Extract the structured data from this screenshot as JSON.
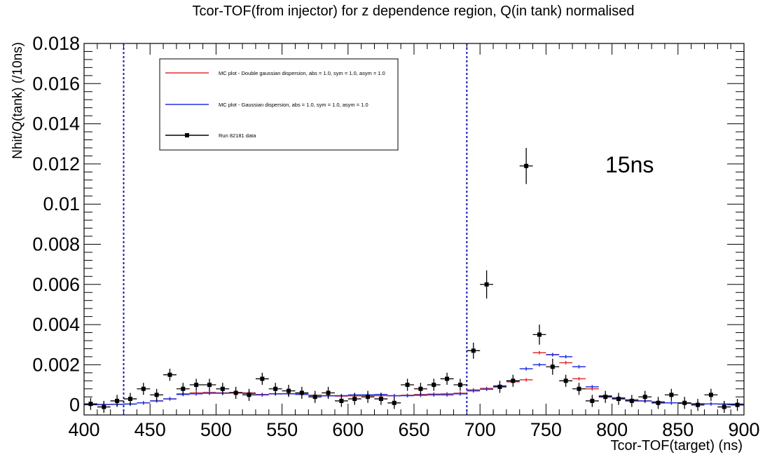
{
  "chart_data": {
    "type": "scatter",
    "title": "Tcor-TOF(from injector) for z dependence region, Q(in tank) normalised",
    "xlabel": "Tcor-TOF(target) (ns)",
    "ylabel": "Nhit/Q(tank) (/10ns)",
    "xlim": [
      400,
      900
    ],
    "ylim": [
      -0.0005,
      0.018
    ],
    "x_ticks": [
      400,
      450,
      500,
      550,
      600,
      650,
      700,
      750,
      800,
      850,
      900
    ],
    "x_tick_labels": [
      "400",
      "450",
      "500",
      "550",
      "600",
      "650",
      "700",
      "750",
      "800",
      "850",
      "900"
    ],
    "y_ticks": [
      0,
      0.002,
      0.004,
      0.006,
      0.008,
      0.01,
      0.012,
      0.014,
      0.016,
      0.018
    ],
    "y_tick_labels": [
      "0",
      "0.002",
      "0.004",
      "0.006",
      "0.008",
      "0.01",
      "0.012",
      "0.014",
      "0.016",
      "0.018"
    ],
    "grid": false,
    "legend_position": "top-left",
    "annotation": "15ns",
    "vertical_lines": [
      {
        "x": 430,
        "color": "#1a1aaa",
        "style": "dotted"
      },
      {
        "x": 690,
        "color": "#1a1aaa",
        "style": "dotted"
      }
    ],
    "colors": {
      "red": "#e03030",
      "blue": "#2030e0",
      "black": "#000000"
    },
    "series": [
      {
        "name": "MC plot - Double gaussian dispersion, abs = 1.0, sym = 1.0, asym = 1.0",
        "color": "#e03030",
        "bin_width": 10,
        "x": [
          405,
          415,
          425,
          435,
          445,
          455,
          465,
          475,
          485,
          495,
          505,
          515,
          525,
          535,
          545,
          555,
          565,
          575,
          585,
          595,
          605,
          615,
          625,
          635,
          645,
          655,
          665,
          675,
          685,
          695,
          705,
          715,
          725,
          735,
          745,
          755,
          765,
          775,
          785,
          795,
          805,
          815,
          825,
          835,
          845,
          855,
          865,
          875,
          885,
          895
        ],
        "y": [
          5e-05,
          2e-05,
          3e-05,
          5e-05,
          0.0001,
          0.0002,
          0.0003,
          0.00055,
          0.0006,
          0.00062,
          0.0006,
          0.00062,
          0.0006,
          0.00052,
          0.00055,
          0.00056,
          0.00055,
          0.00048,
          0.00046,
          0.00044,
          0.00045,
          0.00046,
          0.00046,
          0.00045,
          0.00048,
          0.00052,
          0.00054,
          0.00055,
          0.00058,
          0.00075,
          0.00082,
          0.0009,
          0.00115,
          0.00125,
          0.0026,
          0.0025,
          0.0021,
          0.0013,
          0.0008,
          0.0004,
          0.00035,
          0.00025,
          0.0002,
          0.00015,
          0.0001,
          8e-05,
          6e-05,
          5e-05,
          4e-05,
          4e-05
        ]
      },
      {
        "name": "MC plot - Gaussian dispersion, abs = 1.0, sym = 1.0, asym = 1.0",
        "color": "#2030e0",
        "bin_width": 10,
        "x": [
          405,
          415,
          425,
          435,
          445,
          455,
          465,
          475,
          485,
          495,
          505,
          515,
          525,
          535,
          545,
          555,
          565,
          575,
          585,
          595,
          605,
          615,
          625,
          635,
          645,
          655,
          665,
          675,
          685,
          695,
          705,
          715,
          725,
          735,
          745,
          755,
          765,
          775,
          785,
          795,
          805,
          815,
          825,
          835,
          845,
          855,
          865,
          875,
          885,
          895
        ],
        "y": [
          4e-05,
          2e-05,
          3e-05,
          4e-05,
          0.0001,
          0.0002,
          0.0003,
          0.00052,
          0.00055,
          0.00058,
          0.00058,
          0.0006,
          0.00057,
          0.0005,
          0.00055,
          0.00055,
          0.00052,
          0.00046,
          0.00045,
          0.00046,
          0.0005,
          0.0005,
          0.00052,
          0.00046,
          0.00046,
          0.00048,
          0.0005,
          0.0005,
          0.00055,
          0.0007,
          0.00078,
          0.00095,
          0.0012,
          0.0018,
          0.002,
          0.0025,
          0.0024,
          0.0019,
          0.0009,
          0.00045,
          0.00035,
          0.00025,
          0.0002,
          0.00015,
          0.0001,
          8e-05,
          6e-05,
          5e-05,
          4e-05,
          4e-05
        ]
      },
      {
        "name": "Run 82181 data",
        "color": "#000000",
        "bin_width": 10,
        "x": [
          405,
          415,
          425,
          435,
          445,
          455,
          465,
          475,
          485,
          495,
          505,
          515,
          525,
          535,
          545,
          555,
          565,
          575,
          585,
          595,
          605,
          615,
          625,
          635,
          645,
          655,
          665,
          675,
          685,
          695,
          705,
          715,
          725,
          735,
          745,
          755,
          765,
          775,
          785,
          795,
          805,
          815,
          825,
          835,
          845,
          855,
          865,
          875,
          885,
          895
        ],
        "y": [
          5e-05,
          -0.0001,
          0.0002,
          0.0003,
          0.0008,
          0.0005,
          0.0015,
          0.0008,
          0.001,
          0.001,
          0.0008,
          0.0006,
          0.0005,
          0.0013,
          0.0008,
          0.0007,
          0.0006,
          0.0004,
          0.0006,
          0.0002,
          0.0003,
          0.0004,
          0.0003,
          0.0001,
          0.001,
          0.0008,
          0.001,
          0.0013,
          0.001,
          0.0027,
          0.006,
          0.0009,
          0.0012,
          0.0119,
          0.0035,
          0.0019,
          0.0012,
          0.0008,
          0.0002,
          0.0004,
          0.0003,
          0.0002,
          0.0004,
          0.0001,
          0.0005,
          0.0001,
          0.0,
          0.0005,
          -0.0001,
          0.0
        ],
        "yerr": [
          0.0003,
          0.0003,
          0.0003,
          0.0003,
          0.0003,
          0.0003,
          0.0003,
          0.0003,
          0.0003,
          0.0003,
          0.0003,
          0.0003,
          0.0003,
          0.0003,
          0.0003,
          0.0003,
          0.0003,
          0.0003,
          0.0003,
          0.0003,
          0.0003,
          0.0003,
          0.0003,
          0.0003,
          0.0003,
          0.0003,
          0.0003,
          0.0003,
          0.0003,
          0.0004,
          0.0007,
          0.0003,
          0.0003,
          0.0009,
          0.0005,
          0.0004,
          0.0003,
          0.0003,
          0.0003,
          0.0003,
          0.0003,
          0.0003,
          0.0003,
          0.0003,
          0.0003,
          0.0003,
          0.0003,
          0.0003,
          0.0003,
          0.0003
        ]
      }
    ]
  }
}
